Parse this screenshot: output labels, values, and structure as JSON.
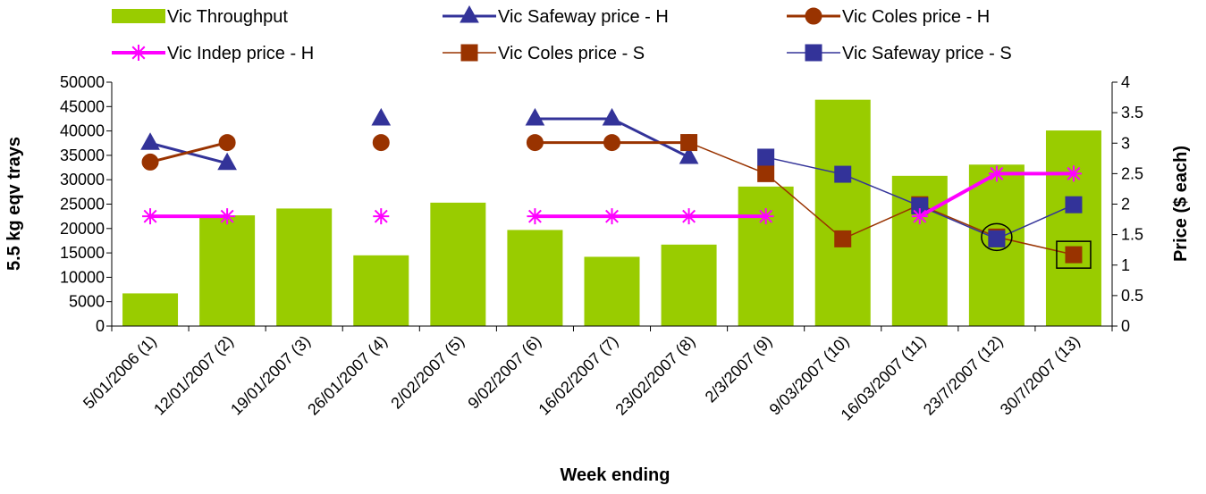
{
  "chart_data": {
    "type": "bar",
    "categories": [
      "5/01/2006 (1)",
      "12/01/2007 (2)",
      "19/01/2007 (3)",
      "26/01/2007 (4)",
      "2/02/2007 (5)",
      "9/02/2007 (6)",
      "16/02/2007 (7)",
      "23/02/2007 (8)",
      "2/3/2007 (9)",
      "9/03/2007 (10)",
      "16/03/2007 (11)",
      "23/7/2007 (12)",
      "30/7/2007 (13)"
    ],
    "xlabel": "Week ending",
    "ylabel": "5.5 kg eqv trays",
    "y2label": "Price ($ each)",
    "ylim": [
      0,
      50000
    ],
    "y2lim": [
      0,
      4
    ],
    "yticks": [
      "0",
      "5000",
      "10000",
      "15000",
      "20000",
      "25000",
      "30000",
      "35000",
      "40000",
      "45000",
      "50000"
    ],
    "y2ticks": [
      "0",
      "0.5",
      "1",
      "1.5",
      "2",
      "2.5",
      "3",
      "3.5",
      "4"
    ],
    "grid": false,
    "legend_position": "top",
    "bar_series": {
      "name": "Vic Throughput",
      "color": "#99cc00",
      "values": [
        6700,
        22700,
        24100,
        14500,
        25300,
        19700,
        14200,
        16700,
        28600,
        46400,
        30800,
        33100,
        40100
      ]
    },
    "line_series": [
      {
        "name": "Vic Safeway price - H",
        "color": "#333399",
        "marker": "triangle",
        "stroke_width": 3,
        "values": [
          3.0,
          2.67,
          null,
          3.4,
          null,
          3.4,
          3.4,
          2.77,
          null,
          null,
          null,
          null,
          null
        ]
      },
      {
        "name": "Vic Coles price - H",
        "color": "#993300",
        "marker": "circle",
        "stroke_width": 3,
        "values": [
          2.69,
          3.01,
          null,
          3.01,
          null,
          3.01,
          3.01,
          3.01,
          null,
          null,
          null,
          null,
          null
        ]
      },
      {
        "name": "Vic Indep price - H",
        "color": "#ff00ff",
        "marker": "asterisk",
        "stroke_width": 4,
        "values": [
          1.8,
          1.8,
          null,
          1.8,
          null,
          1.8,
          1.8,
          1.8,
          1.8,
          null,
          1.8,
          2.5,
          2.5
        ]
      },
      {
        "name": "Vic Coles price - S",
        "color": "#993300",
        "marker": "square",
        "stroke_width": 1.5,
        "values": [
          null,
          null,
          null,
          null,
          null,
          null,
          null,
          3.01,
          2.5,
          1.43,
          1.99,
          1.46,
          1.17
        ]
      },
      {
        "name": "Vic Safeway price - S",
        "color": "#333399",
        "marker": "square",
        "stroke_width": 1.5,
        "values": [
          null,
          null,
          null,
          null,
          null,
          null,
          null,
          null,
          2.77,
          2.49,
          1.97,
          1.43,
          1.99
        ]
      }
    ],
    "annotations": [
      {
        "shape": "circle",
        "category_index": 11,
        "value": 1.46
      },
      {
        "shape": "square",
        "category_index": 12,
        "value": 1.17
      }
    ]
  }
}
